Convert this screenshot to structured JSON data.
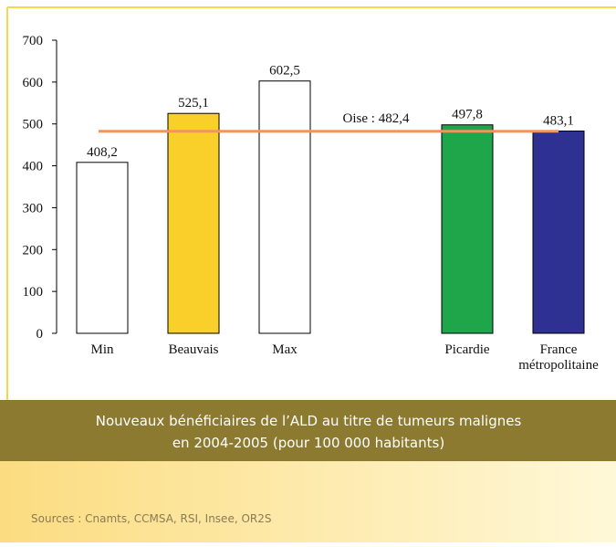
{
  "chart_data": {
    "type": "bar",
    "title": [
      "Nouveaux bénéficiaires de l’ALD au titre de tumeurs malignes",
      "en 2004-2005 (pour 100 000 habitants)"
    ],
    "source": "Sources : Cnamts, CCMSA, RSI, Insee, OR2S",
    "categories": [
      "Min",
      "Beauvais",
      "Max",
      null,
      "Picardie",
      "France métropolitaine"
    ],
    "values": [
      408.2,
      525.1,
      602.5,
      null,
      497.8,
      483.1
    ],
    "value_labels": [
      "408,2",
      "525,1",
      "602,5",
      null,
      "497,8",
      "483,1"
    ],
    "colors": [
      "#ffffff",
      "#f9cf2a",
      "#ffffff",
      null,
      "#1fa64a",
      "#2e3191"
    ],
    "reference_line": {
      "value": 482.4,
      "label": "Oise : 482,4",
      "color": "#f4945a"
    },
    "ylim": [
      0,
      700
    ],
    "yticks": [
      0,
      100,
      200,
      300,
      400,
      500,
      600,
      700
    ]
  }
}
